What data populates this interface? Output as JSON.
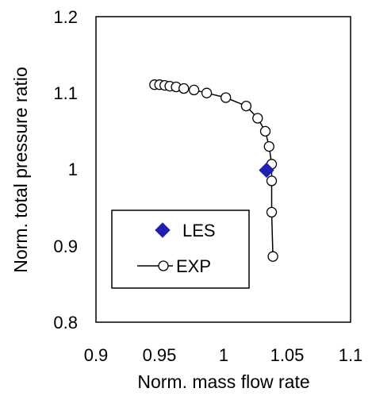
{
  "chart_data": {
    "type": "scatter",
    "xlabel": "Norm. mass flow rate",
    "ylabel": "Norm. total pressure ratio",
    "xlim": [
      0.9,
      1.1
    ],
    "ylim": [
      0.8,
      1.2
    ],
    "x_ticks": [
      "0.9",
      "0.95",
      "1",
      "1.05",
      "1.1"
    ],
    "y_ticks": [
      "0.8",
      "0.9",
      "1",
      "1.1",
      "1.2"
    ],
    "grid": false,
    "legend_position": "bottom-left",
    "series": [
      {
        "name": "LES",
        "marker": "diamond",
        "line": false,
        "color": "#1f1fb4",
        "points": [
          [
            1.034,
            0.999
          ]
        ]
      },
      {
        "name": "EXP",
        "marker": "open-circle",
        "line": true,
        "color": "#000000",
        "points": [
          [
            0.946,
            1.111
          ],
          [
            0.95,
            1.111
          ],
          [
            0.954,
            1.11
          ],
          [
            0.958,
            1.109
          ],
          [
            0.963,
            1.108
          ],
          [
            0.969,
            1.106
          ],
          [
            0.977,
            1.104
          ],
          [
            0.987,
            1.1
          ],
          [
            1.002,
            1.094
          ],
          [
            1.018,
            1.083
          ],
          [
            1.027,
            1.067
          ],
          [
            1.033,
            1.05
          ],
          [
            1.036,
            1.03
          ],
          [
            1.038,
            1.007
          ],
          [
            1.038,
            0.985
          ],
          [
            1.038,
            0.944
          ],
          [
            1.039,
            0.886
          ]
        ]
      }
    ]
  }
}
